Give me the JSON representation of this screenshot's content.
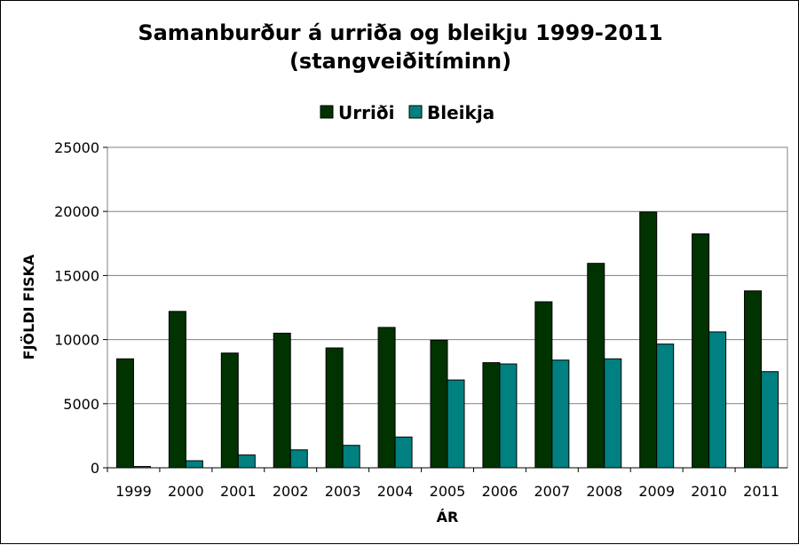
{
  "chart_data": {
    "type": "bar",
    "title": "Samanburður á urriða og bleikju 1999-2011",
    "subtitle": "(stangveiðitíminn)",
    "xlabel": "ÁR",
    "ylabel": "FJÖLDI FISKA",
    "categories": [
      "1999",
      "2000",
      "2001",
      "2002",
      "2003",
      "2004",
      "2005",
      "2006",
      "2007",
      "2008",
      "2009",
      "2010",
      "2011"
    ],
    "series": [
      {
        "name": "Urriði",
        "color": "#003300",
        "values": [
          8500,
          12200,
          8950,
          10500,
          9350,
          10950,
          9950,
          8200,
          12950,
          15950,
          19950,
          18250,
          13800
        ]
      },
      {
        "name": "Bleikja",
        "color": "#008080",
        "values": [
          100,
          550,
          1000,
          1400,
          1750,
          2400,
          6850,
          8100,
          8400,
          8500,
          9650,
          10600,
          7500
        ]
      }
    ],
    "ylim": [
      0,
      25000
    ],
    "yticks": [
      "0",
      "5000",
      "10000",
      "15000",
      "20000",
      "25000"
    ],
    "grid": true,
    "legend_position": "top"
  }
}
